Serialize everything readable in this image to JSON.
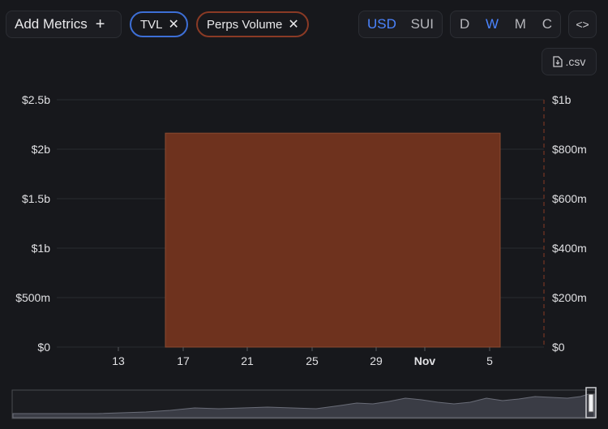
{
  "toolbar": {
    "add_metrics_label": "Add Metrics",
    "add_icon": "+",
    "metric_pills": [
      {
        "label": "TVL",
        "color": "#3d6fd6"
      },
      {
        "label": "Perps Volume",
        "color": "#8a3a25"
      }
    ],
    "remove_icon": "✕",
    "currency_options": [
      "USD",
      "SUI"
    ],
    "currency_selected": "USD",
    "period_options": [
      "D",
      "W",
      "M",
      "C"
    ],
    "period_selected": "W",
    "embed_label": "<>",
    "csv_label": ".csv"
  },
  "chart_data": {
    "type": "bar",
    "x_ticks": [
      "13",
      "17",
      "21",
      "25",
      "29",
      "Nov",
      "5"
    ],
    "y_left_ticks": [
      "$0",
      "$500m",
      "$1b",
      "$1.5b",
      "$2b",
      "$2.5b"
    ],
    "y_left_range": [
      0,
      2500000000
    ],
    "y_right_ticks": [
      "$0",
      "$200m",
      "$400m",
      "$600m",
      "$800m",
      "$1b"
    ],
    "y_right_range": [
      0,
      1000000000
    ],
    "series": [
      {
        "metric": "Perps Volume",
        "axis": "right",
        "color": "#6e321e",
        "categories": [
          "Oct 16 – Nov 5"
        ],
        "values": [
          865000000
        ]
      },
      {
        "metric": "TVL",
        "axis": "left",
        "color": "#3d6fd6",
        "values": []
      }
    ],
    "grid": true,
    "legend": "none"
  },
  "colors": {
    "background": "#17181c",
    "accent": "#4b84ff",
    "grid": "#2a2b30"
  }
}
